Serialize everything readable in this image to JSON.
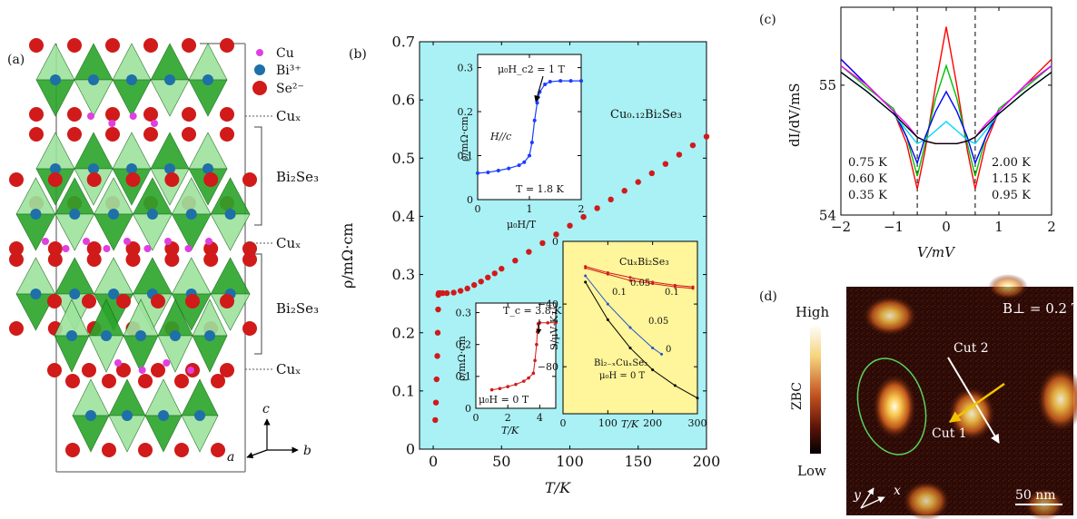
{
  "panel_a": {
    "label": "(a)",
    "legend": [
      {
        "text": "Cu",
        "color": "#e040e0"
      },
      {
        "text": "Bi³⁺",
        "color": "#1f6fa8"
      },
      {
        "text": "Se²⁻",
        "color": "#d11a1a"
      }
    ],
    "side_labels": [
      "Cuₓ",
      "Bi₂Se₃",
      "Cuₓ",
      "Bi₂Se₃",
      "Cuₓ"
    ],
    "axes": {
      "c": "c",
      "a": "a",
      "b": "b"
    },
    "colors": {
      "octahedron": "#2aa52a",
      "octahedron_light": "#9ee39e"
    }
  },
  "panel_b": {
    "label": "(b)",
    "background": "#a9f1f5",
    "compound": "Cu₀.₁₂Bi₂Se₃",
    "xlabel": "T/K",
    "ylabel": "ρ/mΩ·cm",
    "inset1": {
      "annotation": "μ₀H_c2 = 1 T",
      "field_dir": "H//c",
      "temp": "T = 1.8 K",
      "xlabel": "μ₀H/T",
      "ylabel": "ρ/mΩ·cm"
    },
    "inset2": {
      "annotation": "T_c = 3.8 K",
      "field": "μ₀H = 0 T",
      "xlabel": "T/K",
      "ylabel": "ρ/mΩ·cm"
    },
    "inset3": {
      "background": "#fff59a",
      "title": "CuₓBi₂Se₃",
      "lower_label": "Bi₂₋ₓCuₓSe₃",
      "field": "μ₀H = 0 T",
      "xlabel": "T/K",
      "ylabel": "S/μV·K⁻¹",
      "curve_labels": [
        "0.05",
        "0.1",
        "0.1",
        "0.05",
        "0"
      ]
    }
  },
  "panel_c": {
    "label": "(c)",
    "xlabel": "V/mV",
    "ylabel": "dI/dV/mS",
    "legend_left": [
      {
        "text": "0.75 K",
        "color": "#0000ff"
      },
      {
        "text": "0.60 K",
        "color": "#00c000"
      },
      {
        "text": "0.35 K",
        "color": "#ff0000"
      }
    ],
    "legend_right": [
      {
        "text": "2.00 K",
        "color": "#000000"
      },
      {
        "text": "1.15 K",
        "color": "#ff00ff"
      },
      {
        "text": "0.95 K",
        "color": "#00d8ff"
      }
    ]
  },
  "panel_d": {
    "label": "(d)",
    "field": "B⊥ = 0.2 T",
    "colorbar_label": "ZBC",
    "high": "High",
    "low": "Low",
    "cut1": "Cut 1",
    "cut2": "Cut 2",
    "scalebar": "50 nm",
    "x": "x",
    "y": "y"
  },
  "chart_data": [
    {
      "type": "scatter",
      "title": "",
      "xlabel": "T/K",
      "ylabel": "ρ/mΩ·cm",
      "xlim": [
        -10,
        200
      ],
      "ylim": [
        0,
        0.7
      ],
      "xticks": [
        0,
        50,
        100,
        150,
        200
      ],
      "yticks": [
        0,
        0.1,
        0.2,
        0.3,
        0.4,
        0.5,
        0.6,
        0.7
      ],
      "series": [
        {
          "color": "#d11a1a",
          "x": [
            1.5,
            2,
            2.5,
            3,
            3.3,
            3.6,
            3.8,
            4,
            5,
            7,
            10,
            15,
            20,
            25,
            30,
            35,
            40,
            45,
            50,
            60,
            70,
            80,
            90,
            100,
            110,
            120,
            130,
            140,
            150,
            160,
            170,
            180,
            190,
            200
          ],
          "y": [
            0.05,
            0.08,
            0.12,
            0.16,
            0.2,
            0.24,
            0.265,
            0.268,
            0.268,
            0.268,
            0.268,
            0.269,
            0.272,
            0.276,
            0.282,
            0.288,
            0.295,
            0.302,
            0.31,
            0.324,
            0.339,
            0.354,
            0.369,
            0.384,
            0.399,
            0.414,
            0.429,
            0.444,
            0.459,
            0.474,
            0.49,
            0.506,
            0.522,
            0.537
          ]
        }
      ]
    },
    {
      "type": "line",
      "title": "",
      "xlabel": "μ₀H/T",
      "ylabel": "ρ/mΩ·cm",
      "xlim": [
        0,
        2
      ],
      "ylim": [
        0,
        0.33
      ],
      "xticks": [
        0,
        1,
        2
      ],
      "yticks": [
        0,
        0.1,
        0.2,
        0.3
      ],
      "series": [
        {
          "color": "#1a3cff",
          "x": [
            0,
            0.2,
            0.4,
            0.6,
            0.8,
            0.9,
            1.0,
            1.05,
            1.1,
            1.15,
            1.2,
            1.3,
            1.4,
            1.6,
            1.8,
            2.0
          ],
          "y": [
            0.06,
            0.062,
            0.066,
            0.071,
            0.078,
            0.085,
            0.1,
            0.13,
            0.18,
            0.22,
            0.245,
            0.262,
            0.268,
            0.27,
            0.27,
            0.27
          ]
        }
      ]
    },
    {
      "type": "line",
      "title": "",
      "xlabel": "T/K",
      "ylabel": "ρ/mΩ·cm",
      "xlim": [
        0,
        5
      ],
      "ylim": [
        0,
        0.33
      ],
      "xticks": [
        0,
        2,
        4
      ],
      "yticks": [
        0,
        0.1,
        0.2,
        0.3
      ],
      "series": [
        {
          "color": "#d11a1a",
          "x": [
            1.0,
            1.5,
            2.0,
            2.5,
            3.0,
            3.3,
            3.6,
            3.7,
            3.8,
            3.85,
            3.9,
            4.0,
            4.5,
            5.0
          ],
          "y": [
            0.058,
            0.062,
            0.068,
            0.075,
            0.085,
            0.095,
            0.11,
            0.15,
            0.2,
            0.24,
            0.265,
            0.268,
            0.268,
            0.268
          ]
        }
      ]
    },
    {
      "type": "line",
      "title": "",
      "xlabel": "T/K",
      "ylabel": "S/μV·K⁻¹",
      "xlim": [
        0,
        300
      ],
      "ylim": [
        -110,
        0
      ],
      "xticks": [
        0,
        100,
        200,
        300
      ],
      "yticks": [
        0,
        -40,
        -80
      ],
      "series": [
        {
          "color": "#d11a1a",
          "x": [
            50,
            100,
            150,
            200,
            250,
            290
          ],
          "y": [
            -16,
            -20,
            -23,
            -26,
            -28,
            -29
          ]
        },
        {
          "color": "#d11a1a",
          "x": [
            50,
            100,
            150,
            200,
            250,
            290
          ],
          "y": [
            -17,
            -21,
            -25,
            -27,
            -29,
            -30
          ]
        },
        {
          "color": "#2255cc",
          "x": [
            50,
            100,
            150,
            200,
            220
          ],
          "y": [
            -22,
            -40,
            -55,
            -68,
            -72
          ]
        },
        {
          "color": "#000000",
          "x": [
            50,
            100,
            150,
            200,
            250,
            300
          ],
          "y": [
            -26,
            -50,
            -68,
            -82,
            -92,
            -100
          ]
        }
      ]
    },
    {
      "type": "line",
      "title": "",
      "xlabel": "V/mV",
      "ylabel": "dI/dV/mS",
      "xlim": [
        -2,
        2
      ],
      "ylim": [
        54,
        55.6
      ],
      "xticks": [
        -2,
        -1,
        0,
        1,
        2
      ],
      "yticks": [
        54,
        55
      ],
      "series": [
        {
          "name": "0.35 K",
          "color": "#ff0000",
          "x": [
            -2,
            -1.5,
            -1,
            -0.75,
            -0.55,
            -0.4,
            -0.2,
            0,
            0.2,
            0.4,
            0.55,
            0.75,
            1,
            1.5,
            2
          ],
          "y": [
            55.2,
            55.0,
            54.8,
            54.55,
            54.2,
            54.5,
            55.0,
            55.45,
            55.0,
            54.5,
            54.2,
            54.55,
            54.8,
            55.0,
            55.2
          ]
        },
        {
          "name": "0.60 K",
          "color": "#00c000",
          "x": [
            -2,
            -1.5,
            -1,
            -0.75,
            -0.55,
            -0.4,
            -0.2,
            0,
            0.2,
            0.4,
            0.55,
            0.75,
            1,
            1.5,
            2
          ],
          "y": [
            55.15,
            54.98,
            54.82,
            54.6,
            54.3,
            54.55,
            54.9,
            55.15,
            54.9,
            54.55,
            54.3,
            54.6,
            54.82,
            54.98,
            55.15
          ]
        },
        {
          "name": "0.75 K",
          "color": "#0000ff",
          "x": [
            -2,
            -1.5,
            -1,
            -0.75,
            -0.55,
            -0.4,
            -0.2,
            0,
            0.2,
            0.4,
            0.55,
            0.75,
            1,
            1.5,
            2
          ],
          "y": [
            55.2,
            55.0,
            54.8,
            54.6,
            54.4,
            54.6,
            54.8,
            54.95,
            54.8,
            54.6,
            54.4,
            54.6,
            54.8,
            55.0,
            55.15
          ]
        },
        {
          "name": "0.95 K",
          "color": "#00d8ff",
          "x": [
            -2,
            -1.5,
            -1,
            -0.75,
            -0.55,
            -0.4,
            -0.2,
            0,
            0.2,
            0.4,
            0.55,
            0.75,
            1,
            1.5,
            2
          ],
          "y": [
            55.1,
            54.95,
            54.78,
            54.65,
            54.55,
            54.58,
            54.65,
            54.72,
            54.65,
            54.58,
            54.55,
            54.65,
            54.78,
            54.95,
            55.1
          ]
        },
        {
          "name": "1.15 K",
          "color": "#ff00ff",
          "x": [
            -2,
            -1.5,
            -1,
            -0.75,
            -0.55,
            -0.4,
            -0.2,
            0,
            0.2,
            0.4,
            0.55,
            0.75,
            1,
            1.5,
            2
          ],
          "y": [
            55.15,
            55.0,
            54.8,
            54.7,
            54.6,
            54.57,
            54.55,
            54.55,
            54.55,
            54.57,
            54.6,
            54.7,
            54.8,
            55.0,
            55.15
          ]
        },
        {
          "name": "2.00 K",
          "color": "#000000",
          "x": [
            -2,
            -1.5,
            -1,
            -0.75,
            -0.55,
            -0.4,
            -0.2,
            0,
            0.2,
            0.4,
            0.55,
            0.75,
            1,
            1.5,
            2
          ],
          "y": [
            55.1,
            54.95,
            54.78,
            54.68,
            54.6,
            54.57,
            54.55,
            54.55,
            54.55,
            54.57,
            54.6,
            54.68,
            54.78,
            54.95,
            55.1
          ]
        }
      ],
      "vlines": [
        -0.55,
        0.55
      ]
    }
  ]
}
